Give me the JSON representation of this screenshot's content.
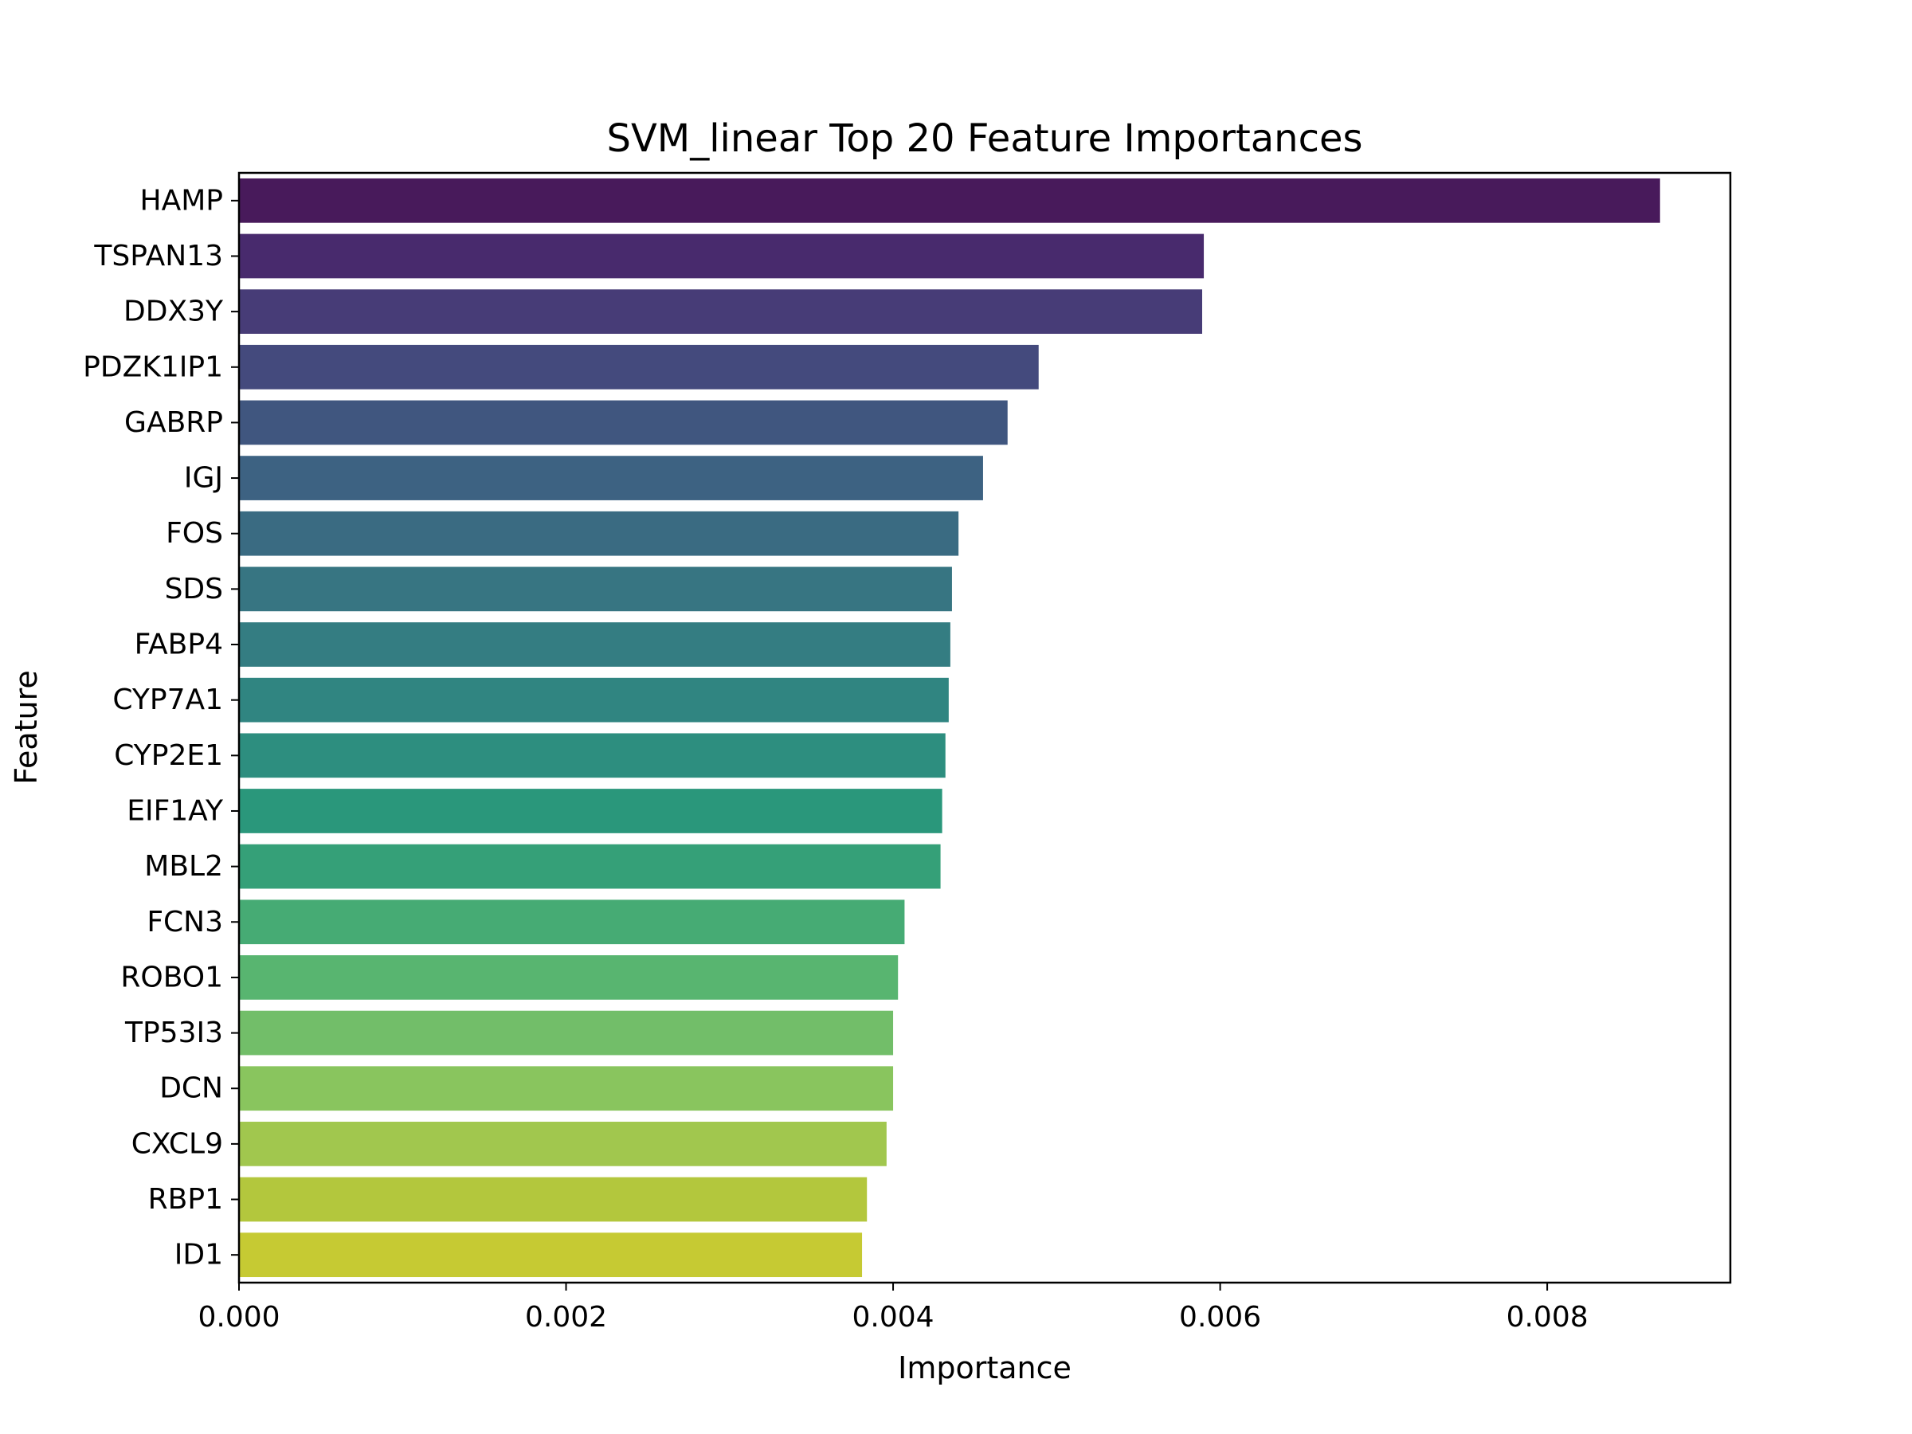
{
  "chart_data": {
    "type": "bar",
    "orientation": "horizontal",
    "title": "SVM_linear Top 20 Feature Importances",
    "xlabel": "Importance",
    "ylabel": "Feature",
    "xlim": [
      0,
      0.00912
    ],
    "xticks": [
      0.0,
      0.002,
      0.004,
      0.006,
      0.008
    ],
    "xtick_labels": [
      "0.000",
      "0.002",
      "0.004",
      "0.006",
      "0.008"
    ],
    "grid": false,
    "legend": "none",
    "colormap": "viridis",
    "categories": [
      "HAMP",
      "TSPAN13",
      "DDX3Y",
      "PDZK1IP1",
      "GABRP",
      "IGJ",
      "FOS",
      "SDS",
      "FABP4",
      "CYP7A1",
      "CYP2E1",
      "EIF1AY",
      "MBL2",
      "FCN3",
      "ROBO1",
      "TP53I3",
      "DCN",
      "CXCL9",
      "RBP1",
      "ID1"
    ],
    "values": [
      0.00869,
      0.0059,
      0.00589,
      0.00489,
      0.0047,
      0.00455,
      0.0044,
      0.00436,
      0.00435,
      0.00434,
      0.00432,
      0.0043,
      0.00429,
      0.00407,
      0.00403,
      0.004,
      0.004,
      0.00396,
      0.00384,
      0.00381
    ],
    "colors": [
      "#481a5b",
      "#482a6d",
      "#473c77",
      "#444a7d",
      "#40567f",
      "#3d6282",
      "#3a6b82",
      "#377582",
      "#347d82",
      "#308581",
      "#2d8e7f",
      "#2a977b",
      "#35a078",
      "#46ab74",
      "#58b570",
      "#72be69",
      "#89c55e",
      "#a1c74e",
      "#b3c73d",
      "#c6ca33"
    ]
  }
}
